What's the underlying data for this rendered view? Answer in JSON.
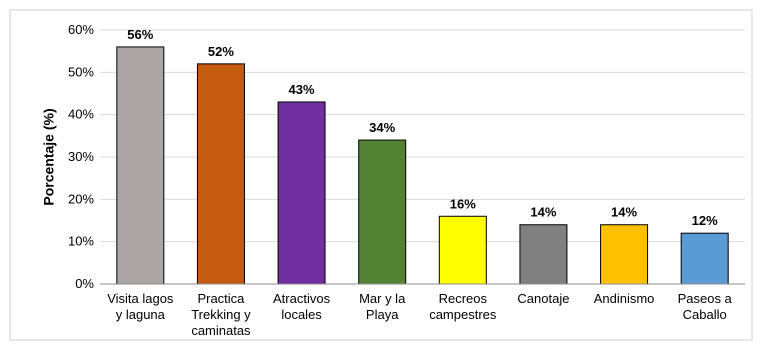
{
  "chart_data": {
    "type": "bar",
    "title": "",
    "xlabel": "",
    "ylabel": "Porcentaje (%)",
    "ylim": [
      0,
      60
    ],
    "yticks": [
      "0%",
      "10%",
      "20%",
      "30%",
      "40%",
      "50%",
      "60%"
    ],
    "grid": true,
    "legend": "none",
    "categories": [
      [
        "Visita lagos",
        "y laguna"
      ],
      [
        "Practica",
        "Trekking y",
        "caminatas"
      ],
      [
        "Atractivos",
        "locales"
      ],
      [
        "Mar y la",
        "Playa"
      ],
      [
        "Recreos",
        "campestres"
      ],
      [
        "Canotaje"
      ],
      [
        "Andinismo"
      ],
      [
        "Paseos a",
        "Caballo"
      ]
    ],
    "values": [
      56,
      52,
      43,
      34,
      16,
      14,
      14,
      12
    ],
    "data_labels": [
      "56%",
      "52%",
      "43%",
      "34%",
      "16%",
      "14%",
      "14%",
      "12%"
    ],
    "colors": [
      "#ABA6A5",
      "#C55A11",
      "#7030A0",
      "#548235",
      "#FFFF00",
      "#808080",
      "#FFC000",
      "#5B9BD5"
    ]
  }
}
